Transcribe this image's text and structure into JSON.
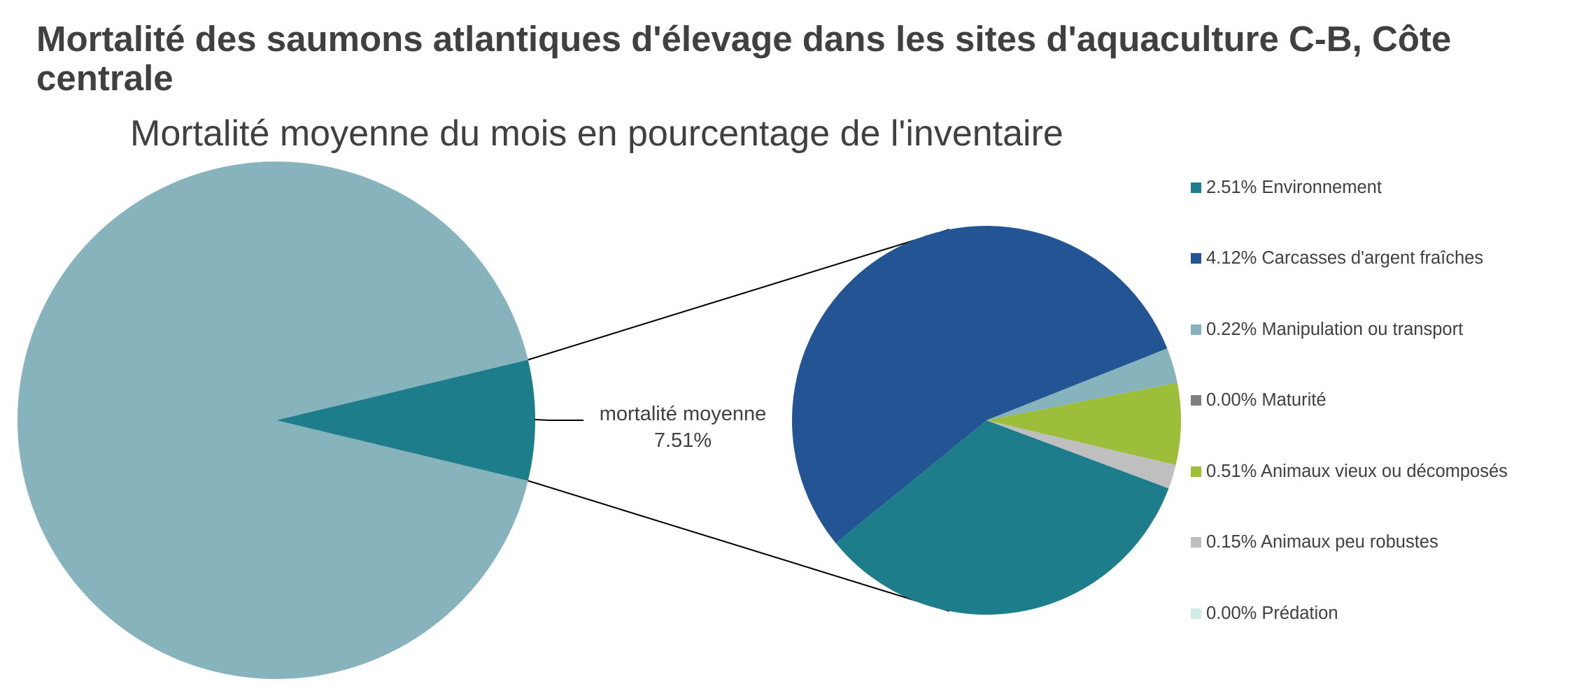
{
  "chart_data": {
    "type": "pie",
    "variant": "pie-of-pie",
    "title": "Mortalité des saumons atlantiques d'élevage dans les sites d'aquaculture C-B, Côte centrale",
    "subtitle": "Mortalité moyenne du mois en pourcentage de l'inventaire",
    "main_pie": {
      "slices": [
        {
          "value": 92.49,
          "color": "#87b4bc"
        },
        {
          "value": 7.51,
          "color": "#1e7d8a",
          "label_line1": "mortalité moyenne",
          "label_line2": "7.51%"
        }
      ]
    },
    "breakdown": {
      "total": 7.51,
      "slices": [
        {
          "label": "2.51% Environnement",
          "value": 2.51,
          "color": "#1e7d8a"
        },
        {
          "label": "4.12% Carcasses d'argent fraîches",
          "value": 4.12,
          "color": "#235494"
        },
        {
          "label": "0.22% Manipulation ou transport",
          "value": 0.22,
          "color": "#87b4bc"
        },
        {
          "label": "0.00% Maturité",
          "value": 0.0,
          "color": "#7f7f7f"
        },
        {
          "label": "0.51% Animaux vieux ou décomposés",
          "value": 0.51,
          "color": "#9dbe3b"
        },
        {
          "label": "0.15% Animaux peu robustes",
          "value": 0.15,
          "color": "#bfbfbf"
        },
        {
          "label": "0.00% Prédation",
          "value": 0.0,
          "color": "#d0ece6"
        }
      ]
    },
    "legend_position": "right"
  }
}
